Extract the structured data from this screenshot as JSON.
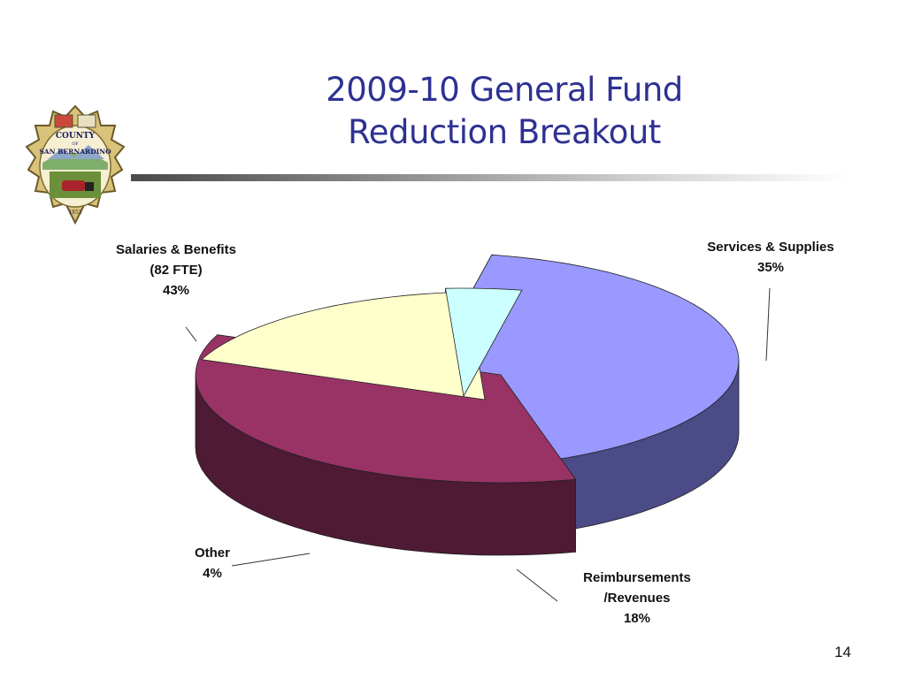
{
  "slide": {
    "title_line1": "2009-10 General Fund",
    "title_line2": "Reduction Breakout",
    "page_number": "14",
    "logo": {
      "icon": "county-seal",
      "text_top": "COUNTY",
      "text_of": "OF",
      "text_bottom": "SAN BERNARDINO",
      "year": "1853"
    }
  },
  "colors": {
    "title": "#2e3192",
    "salaries_top": "#9999ff",
    "salaries_side": "#4b4b87",
    "services_top": "#993366",
    "services_side": "#4e1a34",
    "reimb_top": "#ffffcc",
    "reimb_side": "#808066",
    "other_top": "#ccffff",
    "other_side": "#668080"
  },
  "chart_data": {
    "type": "pie",
    "title": "",
    "three_d": true,
    "exploded": true,
    "slices": [
      {
        "key": "salaries",
        "label_lines": [
          "Salaries & Benefits",
          "(82 FTE)",
          "43%"
        ],
        "value": 43
      },
      {
        "key": "services",
        "label_lines": [
          "Services & Supplies",
          "35%"
        ],
        "value": 35
      },
      {
        "key": "reimb",
        "label_lines": [
          "Reimbursements",
          "/Revenues",
          "18%"
        ],
        "value": 18
      },
      {
        "key": "other",
        "label_lines": [
          "Other",
          "4%"
        ],
        "value": 4
      }
    ]
  }
}
